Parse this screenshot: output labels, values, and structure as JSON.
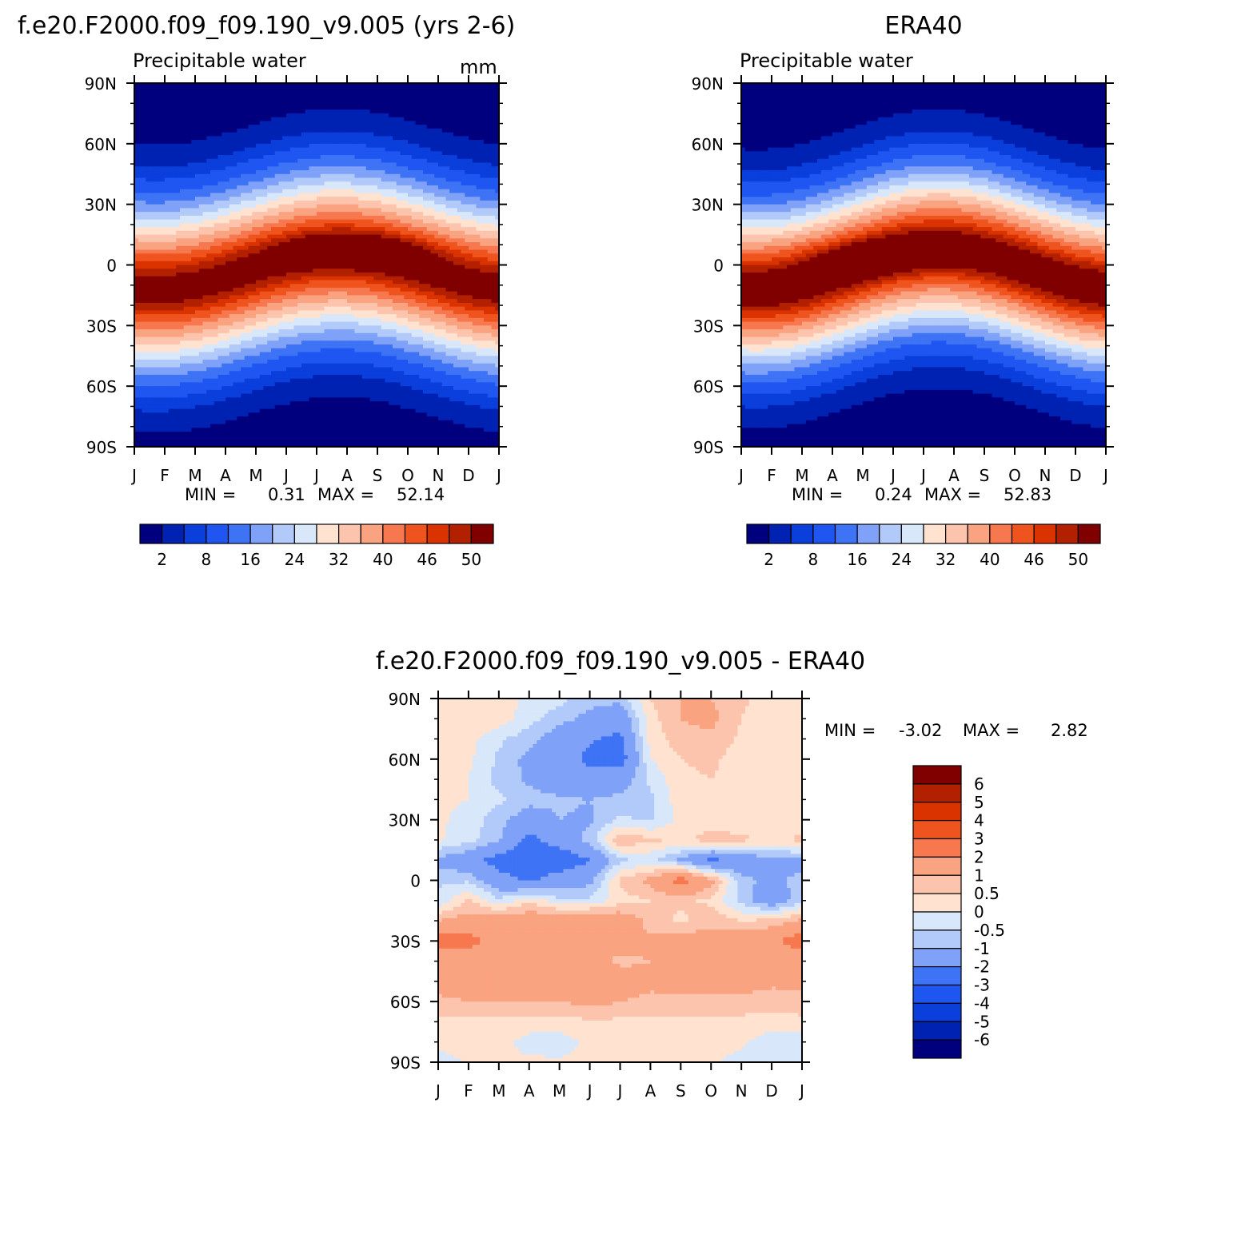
{
  "chart_data": [
    {
      "id": "model",
      "type": "heatmap",
      "title": "f.e20.F2000.f09_f09.190_v9.005 (yrs 2-6)",
      "subtitle": "Precipitable water",
      "units": "mm",
      "x_tick_labels": [
        "J",
        "F",
        "M",
        "A",
        "M",
        "J",
        "J",
        "A",
        "S",
        "O",
        "N",
        "D",
        "J"
      ],
      "y_tick_labels": [
        "90N",
        "60N",
        "30N",
        "0",
        "30S",
        "60S",
        "90S"
      ],
      "ylim": [
        -90,
        90
      ],
      "min_label": "MIN =",
      "min_value": "0.31",
      "max_label": "MAX =",
      "max_value": "52.14",
      "field": {
        "peak": 51.5,
        "lat0": -3,
        "amp": 9,
        "phase_month": 6.7,
        "width": 28,
        "north_decay": 0.85,
        "north_base": 1.0,
        "south_base": 1.2,
        "hot_lat": 8,
        "hot_month": 7.5,
        "hot_boost": 3.5
      },
      "colorbar_labels": [
        "2",
        "8",
        "16",
        "24",
        "32",
        "40",
        "46",
        "50"
      ]
    },
    {
      "id": "obs",
      "type": "heatmap",
      "title": "ERA40",
      "subtitle": "Precipitable water",
      "ylim": [
        -90,
        90
      ],
      "x_tick_labels": [
        "J",
        "F",
        "M",
        "A",
        "M",
        "J",
        "J",
        "A",
        "S",
        "O",
        "N",
        "D",
        "J"
      ],
      "y_tick_labels": [
        "90N",
        "60N",
        "30N",
        "0",
        "30S",
        "60S",
        "90S"
      ],
      "min_label": "MIN =",
      "min_value": "0.24",
      "max_label": "MAX =",
      "max_value": "52.83",
      "field": {
        "peak": 52.5,
        "lat0": -2,
        "amp": 10,
        "phase_month": 6.5,
        "width": 27,
        "north_decay": 0.9,
        "north_base": 0.8,
        "south_base": 1.0,
        "hot_lat": 5,
        "hot_month": 4.0,
        "hot_boost": 3.0
      },
      "colorbar_labels": [
        "2",
        "8",
        "16",
        "24",
        "32",
        "40",
        "46",
        "50"
      ]
    },
    {
      "id": "diff",
      "type": "heatmap",
      "title": "f.e20.F2000.f09_f09.190_v9.005 - ERA40",
      "ylim": [
        -90,
        90
      ],
      "x_tick_labels": [
        "J",
        "F",
        "M",
        "A",
        "M",
        "J",
        "J",
        "A",
        "S",
        "O",
        "N",
        "D",
        "J"
      ],
      "y_tick_labels": [
        "90N",
        "60N",
        "30N",
        "0",
        "30S",
        "60S",
        "90S"
      ],
      "min_label": "MIN =",
      "min_value": "-3.02",
      "max_label": "MAX =",
      "max_value": "2.82",
      "colorbar_labels": [
        "6",
        "5",
        "4",
        "3",
        "2",
        "1",
        "0.5",
        "0",
        "-0.5",
        "-1",
        "-2",
        "-3",
        "-4",
        "-5",
        "-6"
      ],
      "levels": [
        -6,
        -5,
        -4,
        -3,
        -2,
        -1,
        -0.5,
        0,
        0.5,
        1,
        2,
        3,
        4,
        5,
        6
      ],
      "lat_grid": [
        90,
        80,
        70,
        60,
        50,
        40,
        30,
        20,
        10,
        0,
        -10,
        -20,
        -30,
        -40,
        -50,
        -60,
        -70,
        -80,
        -90
      ],
      "values": [
        [
          0.2,
          0.5,
          0.5,
          -0.3,
          -0.3,
          -0.8,
          -0.8,
          0.5,
          1.0,
          1.0,
          0.6,
          0.2,
          0.2
        ],
        [
          0.2,
          0.4,
          0.3,
          -0.3,
          -0.8,
          -1.2,
          -1.6,
          0.3,
          1.0,
          1.2,
          0.5,
          0.2,
          0.2
        ],
        [
          0.2,
          0.2,
          -0.4,
          -0.8,
          -1.4,
          -1.9,
          -2.2,
          0.2,
          0.8,
          0.8,
          0.4,
          0.2,
          0.2
        ],
        [
          0.2,
          0.1,
          -0.6,
          -1.2,
          -1.6,
          -2.2,
          -2.5,
          0.0,
          0.5,
          0.6,
          0.3,
          0.2,
          0.2
        ],
        [
          0.1,
          0.0,
          -0.7,
          -1.1,
          -1.4,
          -1.7,
          -1.4,
          -0.4,
          0.4,
          0.5,
          0.3,
          0.2,
          0.1
        ],
        [
          0.1,
          0.0,
          -0.4,
          -0.8,
          -0.9,
          -1.0,
          -0.8,
          -0.6,
          0.3,
          0.4,
          0.3,
          0.2,
          0.1
        ],
        [
          0.1,
          -0.2,
          -0.8,
          -1.4,
          -1.0,
          -1.1,
          -0.4,
          -0.6,
          0.2,
          0.3,
          0.2,
          0.1,
          0.2
        ],
        [
          0.1,
          -0.3,
          -0.9,
          -2.3,
          -1.5,
          -0.8,
          1.0,
          0.6,
          0.4,
          0.7,
          0.6,
          0.4,
          0.6
        ],
        [
          -1.2,
          -1.6,
          -2.4,
          -2.6,
          -2.8,
          -2.0,
          -0.6,
          -0.4,
          -1.1,
          -2.2,
          -1.6,
          -1.2,
          -1.2
        ],
        [
          -0.6,
          -0.6,
          -1.6,
          -2.2,
          -1.4,
          -1.2,
          0.6,
          1.2,
          2.5,
          1.2,
          -0.8,
          -1.2,
          -0.8
        ],
        [
          -0.4,
          0.6,
          -0.4,
          0.4,
          -0.4,
          -0.4,
          0.3,
          0.5,
          0.6,
          0.4,
          -0.7,
          -1.6,
          -0.6
        ],
        [
          1.0,
          1.3,
          1.5,
          1.5,
          1.7,
          1.8,
          1.5,
          0.8,
          0.4,
          0.8,
          0.5,
          0.6,
          1.1
        ],
        [
          2.4,
          2.4,
          1.6,
          1.7,
          1.6,
          1.3,
          1.2,
          1.1,
          1.3,
          1.4,
          1.5,
          1.8,
          2.6
        ],
        [
          1.5,
          1.4,
          1.0,
          1.2,
          1.0,
          1.2,
          0.9,
          1.0,
          1.8,
          1.0,
          1.3,
          1.4,
          1.2
        ],
        [
          1.2,
          1.3,
          1.3,
          1.2,
          1.1,
          1.3,
          1.3,
          1.1,
          1.2,
          1.2,
          1.2,
          1.1,
          1.1
        ],
        [
          0.9,
          1.0,
          1.0,
          1.0,
          1.0,
          1.2,
          1.0,
          0.9,
          0.9,
          0.9,
          0.9,
          0.8,
          0.9
        ],
        [
          0.3,
          0.4,
          0.3,
          0.3,
          0.3,
          0.4,
          0.4,
          0.4,
          0.4,
          0.4,
          0.3,
          0.3,
          0.3
        ],
        [
          0.2,
          0.2,
          0.2,
          -0.2,
          -0.3,
          0.2,
          0.2,
          0.2,
          0.2,
          0.2,
          0.1,
          -0.3,
          -0.2
        ],
        [
          -0.3,
          0.1,
          0.1,
          0.1,
          0.1,
          0.1,
          0.1,
          0.1,
          0.1,
          0.1,
          -0.2,
          -0.3,
          -0.3
        ]
      ]
    }
  ],
  "colors": {
    "seq_cmap": [
      "#00007f",
      "#0022b2",
      "#0a3fdc",
      "#1f56f2",
      "#3f73f5",
      "#7fa2f8",
      "#b2caf9",
      "#d8e7fa",
      "#ffe3d0",
      "#fcc4ac",
      "#faa380",
      "#f7784f",
      "#f0541e",
      "#da3300",
      "#b22000",
      "#800000"
    ],
    "seq_levels": [
      2,
      5,
      8,
      12,
      16,
      20,
      24,
      28,
      32,
      36,
      40,
      43,
      46,
      48,
      50
    ],
    "div_cmap": [
      "#00007f",
      "#0022b2",
      "#0a3fdc",
      "#1f56f2",
      "#3f73f5",
      "#7fa2f8",
      "#b2caf9",
      "#d8e7fa",
      "#ffe3d0",
      "#fcc4ac",
      "#faa380",
      "#f7784f",
      "#f0541e",
      "#da3300",
      "#b22000",
      "#800000"
    ]
  }
}
